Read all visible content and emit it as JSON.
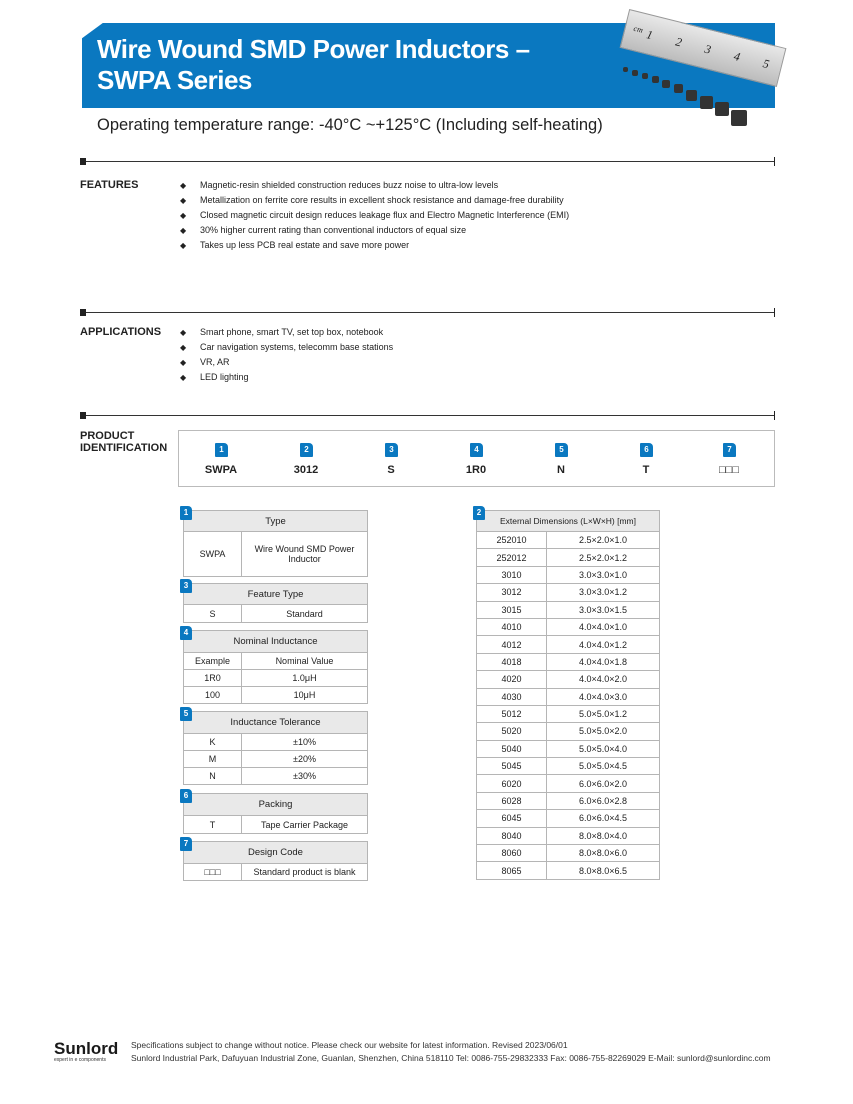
{
  "header": {
    "title_line1": "Wire Wound SMD Power Inductors –",
    "title_line2": "SWPA Series",
    "subtitle": "Operating temperature range: -40°C ~+125°C (Including self-heating)",
    "brand_color": "#0a78c0",
    "ruler_unit": "cm",
    "ruler_marks": [
      "1",
      "2",
      "3",
      "4",
      "5"
    ]
  },
  "features": {
    "label": "FEATURES",
    "items": [
      "Magnetic-resin shielded construction reduces buzz noise to ultra-low levels",
      "Metallization on ferrite core results in excellent shock resistance and damage-free durability",
      "Closed magnetic circuit design reduces leakage flux and Electro Magnetic Interference (EMI)",
      "30% higher current rating than conventional inductors of equal size",
      "Takes up less PCB real estate and save more power"
    ]
  },
  "applications": {
    "label": "APPLICATIONS",
    "items": [
      "Smart phone, smart TV, set top box, notebook",
      "Car navigation systems, telecomm base stations",
      "VR, AR",
      "LED lighting"
    ]
  },
  "product_id": {
    "label_line1": "PRODUCT",
    "label_line2": "IDENTIFICATION",
    "parts": [
      {
        "n": "1",
        "code": "SWPA"
      },
      {
        "n": "2",
        "code": "3012"
      },
      {
        "n": "3",
        "code": "S"
      },
      {
        "n": "4",
        "code": "1R0"
      },
      {
        "n": "5",
        "code": "N"
      },
      {
        "n": "6",
        "code": "T"
      },
      {
        "n": "7",
        "code": "□□□"
      }
    ]
  },
  "tables": {
    "type": {
      "n": "1",
      "title": "Type",
      "rows": [
        [
          "SWPA",
          "Wire Wound SMD Power Inductor"
        ]
      ]
    },
    "feature": {
      "n": "3",
      "title": "Feature Type",
      "rows": [
        [
          "S",
          "Standard"
        ]
      ]
    },
    "inductance": {
      "n": "4",
      "title": "Nominal Inductance",
      "rows": [
        [
          "Example",
          "Nominal Value"
        ],
        [
          "1R0",
          "1.0μH"
        ],
        [
          "100",
          "10μH"
        ]
      ]
    },
    "tolerance": {
      "n": "5",
      "title": "Inductance Tolerance",
      "rows": [
        [
          "K",
          "±10%"
        ],
        [
          "M",
          "±20%"
        ],
        [
          "N",
          "±30%"
        ]
      ]
    },
    "packing": {
      "n": "6",
      "title": "Packing",
      "rows": [
        [
          "T",
          "Tape Carrier Package"
        ]
      ]
    },
    "design": {
      "n": "7",
      "title": "Design Code",
      "rows": [
        [
          "□□□",
          "Standard product is blank"
        ]
      ]
    },
    "dimensions": {
      "n": "2",
      "title": "External Dimensions (L×W×H) [mm]",
      "rows": [
        [
          "252010",
          "2.5×2.0×1.0"
        ],
        [
          "252012",
          "2.5×2.0×1.2"
        ],
        [
          "3010",
          "3.0×3.0×1.0"
        ],
        [
          "3012",
          "3.0×3.0×1.2"
        ],
        [
          "3015",
          "3.0×3.0×1.5"
        ],
        [
          "4010",
          "4.0×4.0×1.0"
        ],
        [
          "4012",
          "4.0×4.0×1.2"
        ],
        [
          "4018",
          "4.0×4.0×1.8"
        ],
        [
          "4020",
          "4.0×4.0×2.0"
        ],
        [
          "4030",
          "4.0×4.0×3.0"
        ],
        [
          "5012",
          "5.0×5.0×1.2"
        ],
        [
          "5020",
          "5.0×5.0×2.0"
        ],
        [
          "5040",
          "5.0×5.0×4.0"
        ],
        [
          "5045",
          "5.0×5.0×4.5"
        ],
        [
          "6020",
          "6.0×6.0×2.0"
        ],
        [
          "6028",
          "6.0×6.0×2.8"
        ],
        [
          "6045",
          "6.0×6.0×4.5"
        ],
        [
          "8040",
          "8.0×8.0×4.0"
        ],
        [
          "8060",
          "8.0×8.0×6.0"
        ],
        [
          "8065",
          "8.0×8.0×6.5"
        ]
      ]
    }
  },
  "footer": {
    "logo": "Sunlord",
    "tagline": "expert in e components",
    "line1": "Specifications subject to change without notice. Please check our website for latest information. Revised 2023/06/01",
    "line2": "Sunlord Industrial Park, Dafuyuan Industrial Zone, Guanlan, Shenzhen, China 518110 Tel: 0086-755-29832333 Fax: 0086-755-82269029 E-Mail: sunlord@sunlordinc.com"
  }
}
